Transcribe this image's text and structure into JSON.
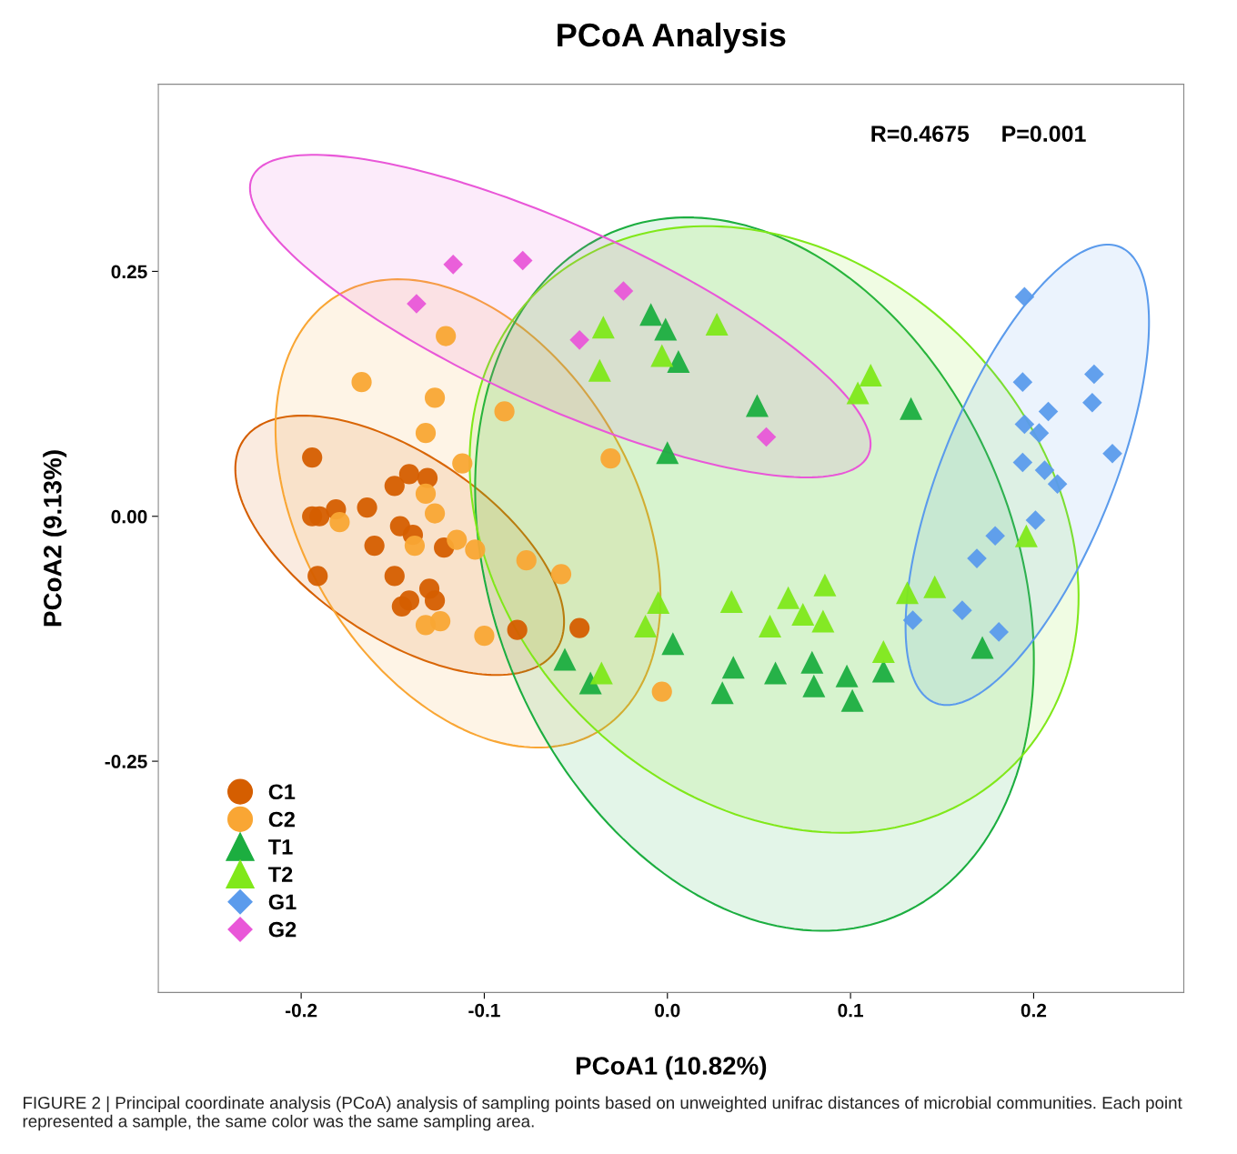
{
  "chart_data": {
    "type": "scatter",
    "title": "PCoA Analysis",
    "xlabel": "PCoA1 (10.82%)",
    "ylabel": "PCoA2 (9.13%)",
    "annotations": [
      "R=0.4675     P=0.001",
      "FIGURE 2 | Principal coordinate analysis (PCoA) analysis of sampling points based on unweighted unifrac distances of microbial communities. Each point represented a sample, the same color was the same sampling area."
    ],
    "xlim": [
      -0.278,
      0.282
    ],
    "ylim": [
      -0.486,
      0.441
    ],
    "xticks": [
      {
        "value": -0.2,
        "label": "-0.2"
      },
      {
        "value": -0.1,
        "label": "-0.1"
      },
      {
        "value": 0.0,
        "label": "0.0"
      },
      {
        "value": 0.1,
        "label": "0.1"
      },
      {
        "value": 0.2,
        "label": "0.2"
      }
    ],
    "yticks": [
      {
        "value": -0.25,
        "label": "-0.25"
      },
      {
        "value": 0.0,
        "label": "0.00"
      },
      {
        "value": 0.25,
        "label": "0.25"
      }
    ],
    "grid": false,
    "legend": "bottom left",
    "series": [
      {
        "name": "C1",
        "color": "#d55e00",
        "marker": "circle",
        "x": [
          -0.194,
          -0.194,
          -0.19,
          -0.181,
          -0.164,
          -0.141,
          -0.149,
          -0.131,
          -0.146,
          -0.139,
          -0.16,
          -0.122,
          -0.149,
          -0.13,
          -0.127,
          -0.141,
          -0.145,
          -0.191,
          -0.082,
          -0.048
        ],
        "values": [
          0.06,
          0.0,
          0.0,
          0.007,
          0.009,
          0.043,
          0.031,
          0.039,
          -0.01,
          -0.019,
          -0.03,
          -0.032,
          -0.061,
          -0.074,
          -0.086,
          -0.086,
          -0.092,
          -0.061,
          -0.116,
          -0.114
        ]
      },
      {
        "name": "C2",
        "color": "#f9a634",
        "marker": "circle",
        "x": [
          -0.121,
          -0.167,
          -0.127,
          -0.132,
          -0.112,
          -0.089,
          -0.132,
          -0.127,
          -0.179,
          -0.138,
          -0.115,
          -0.105,
          -0.077,
          -0.058,
          -0.1,
          -0.132,
          -0.124,
          -0.031,
          -0.003
        ],
        "values": [
          0.184,
          0.137,
          0.121,
          0.085,
          0.054,
          0.107,
          0.023,
          0.003,
          -0.006,
          -0.03,
          -0.024,
          -0.034,
          -0.045,
          -0.059,
          -0.122,
          -0.111,
          -0.107,
          0.059,
          -0.179
        ]
      },
      {
        "name": "T1",
        "color": "#1cae40",
        "marker": "triangle",
        "x": [
          -0.009,
          -0.001,
          0.006,
          0.049,
          0.133,
          0.0,
          -0.056,
          -0.042,
          0.003,
          0.036,
          0.03,
          0.059,
          0.079,
          0.08,
          0.098,
          0.101,
          0.118,
          0.172
        ],
        "values": [
          0.206,
          0.191,
          0.158,
          0.113,
          0.11,
          0.065,
          -0.146,
          -0.17,
          -0.13,
          -0.154,
          -0.18,
          -0.16,
          -0.149,
          -0.173,
          -0.163,
          -0.188,
          -0.158,
          -0.134
        ]
      },
      {
        "name": "T2",
        "color": "#80e81a",
        "marker": "triangle",
        "x": [
          -0.035,
          0.027,
          -0.003,
          -0.037,
          0.111,
          0.104,
          -0.005,
          -0.012,
          0.035,
          0.066,
          0.086,
          0.074,
          0.056,
          0.085,
          0.131,
          0.146,
          0.118,
          -0.036,
          0.196
        ],
        "values": [
          0.193,
          0.196,
          0.164,
          0.149,
          0.144,
          0.126,
          -0.088,
          -0.112,
          -0.087,
          -0.083,
          -0.07,
          -0.1,
          -0.112,
          -0.107,
          -0.078,
          -0.072,
          -0.138,
          -0.16,
          -0.02
        ]
      },
      {
        "name": "G1",
        "color": "#5b9bec",
        "marker": "diamond",
        "x": [
          0.195,
          0.233,
          0.194,
          0.232,
          0.208,
          0.195,
          0.203,
          0.243,
          0.194,
          0.206,
          0.213,
          0.201,
          0.179,
          0.169,
          0.161,
          0.134,
          0.181
        ],
        "values": [
          0.224,
          0.145,
          0.137,
          0.116,
          0.107,
          0.094,
          0.085,
          0.064,
          0.055,
          0.047,
          0.033,
          -0.004,
          -0.02,
          -0.043,
          -0.096,
          -0.106,
          -0.118
        ]
      },
      {
        "name": "G2",
        "color": "#e957d8",
        "marker": "diamond",
        "x": [
          -0.137,
          -0.117,
          -0.079,
          -0.024,
          -0.048,
          0.054
        ],
        "values": [
          0.217,
          0.257,
          0.261,
          0.23,
          0.18,
          0.081
        ]
      }
    ]
  }
}
